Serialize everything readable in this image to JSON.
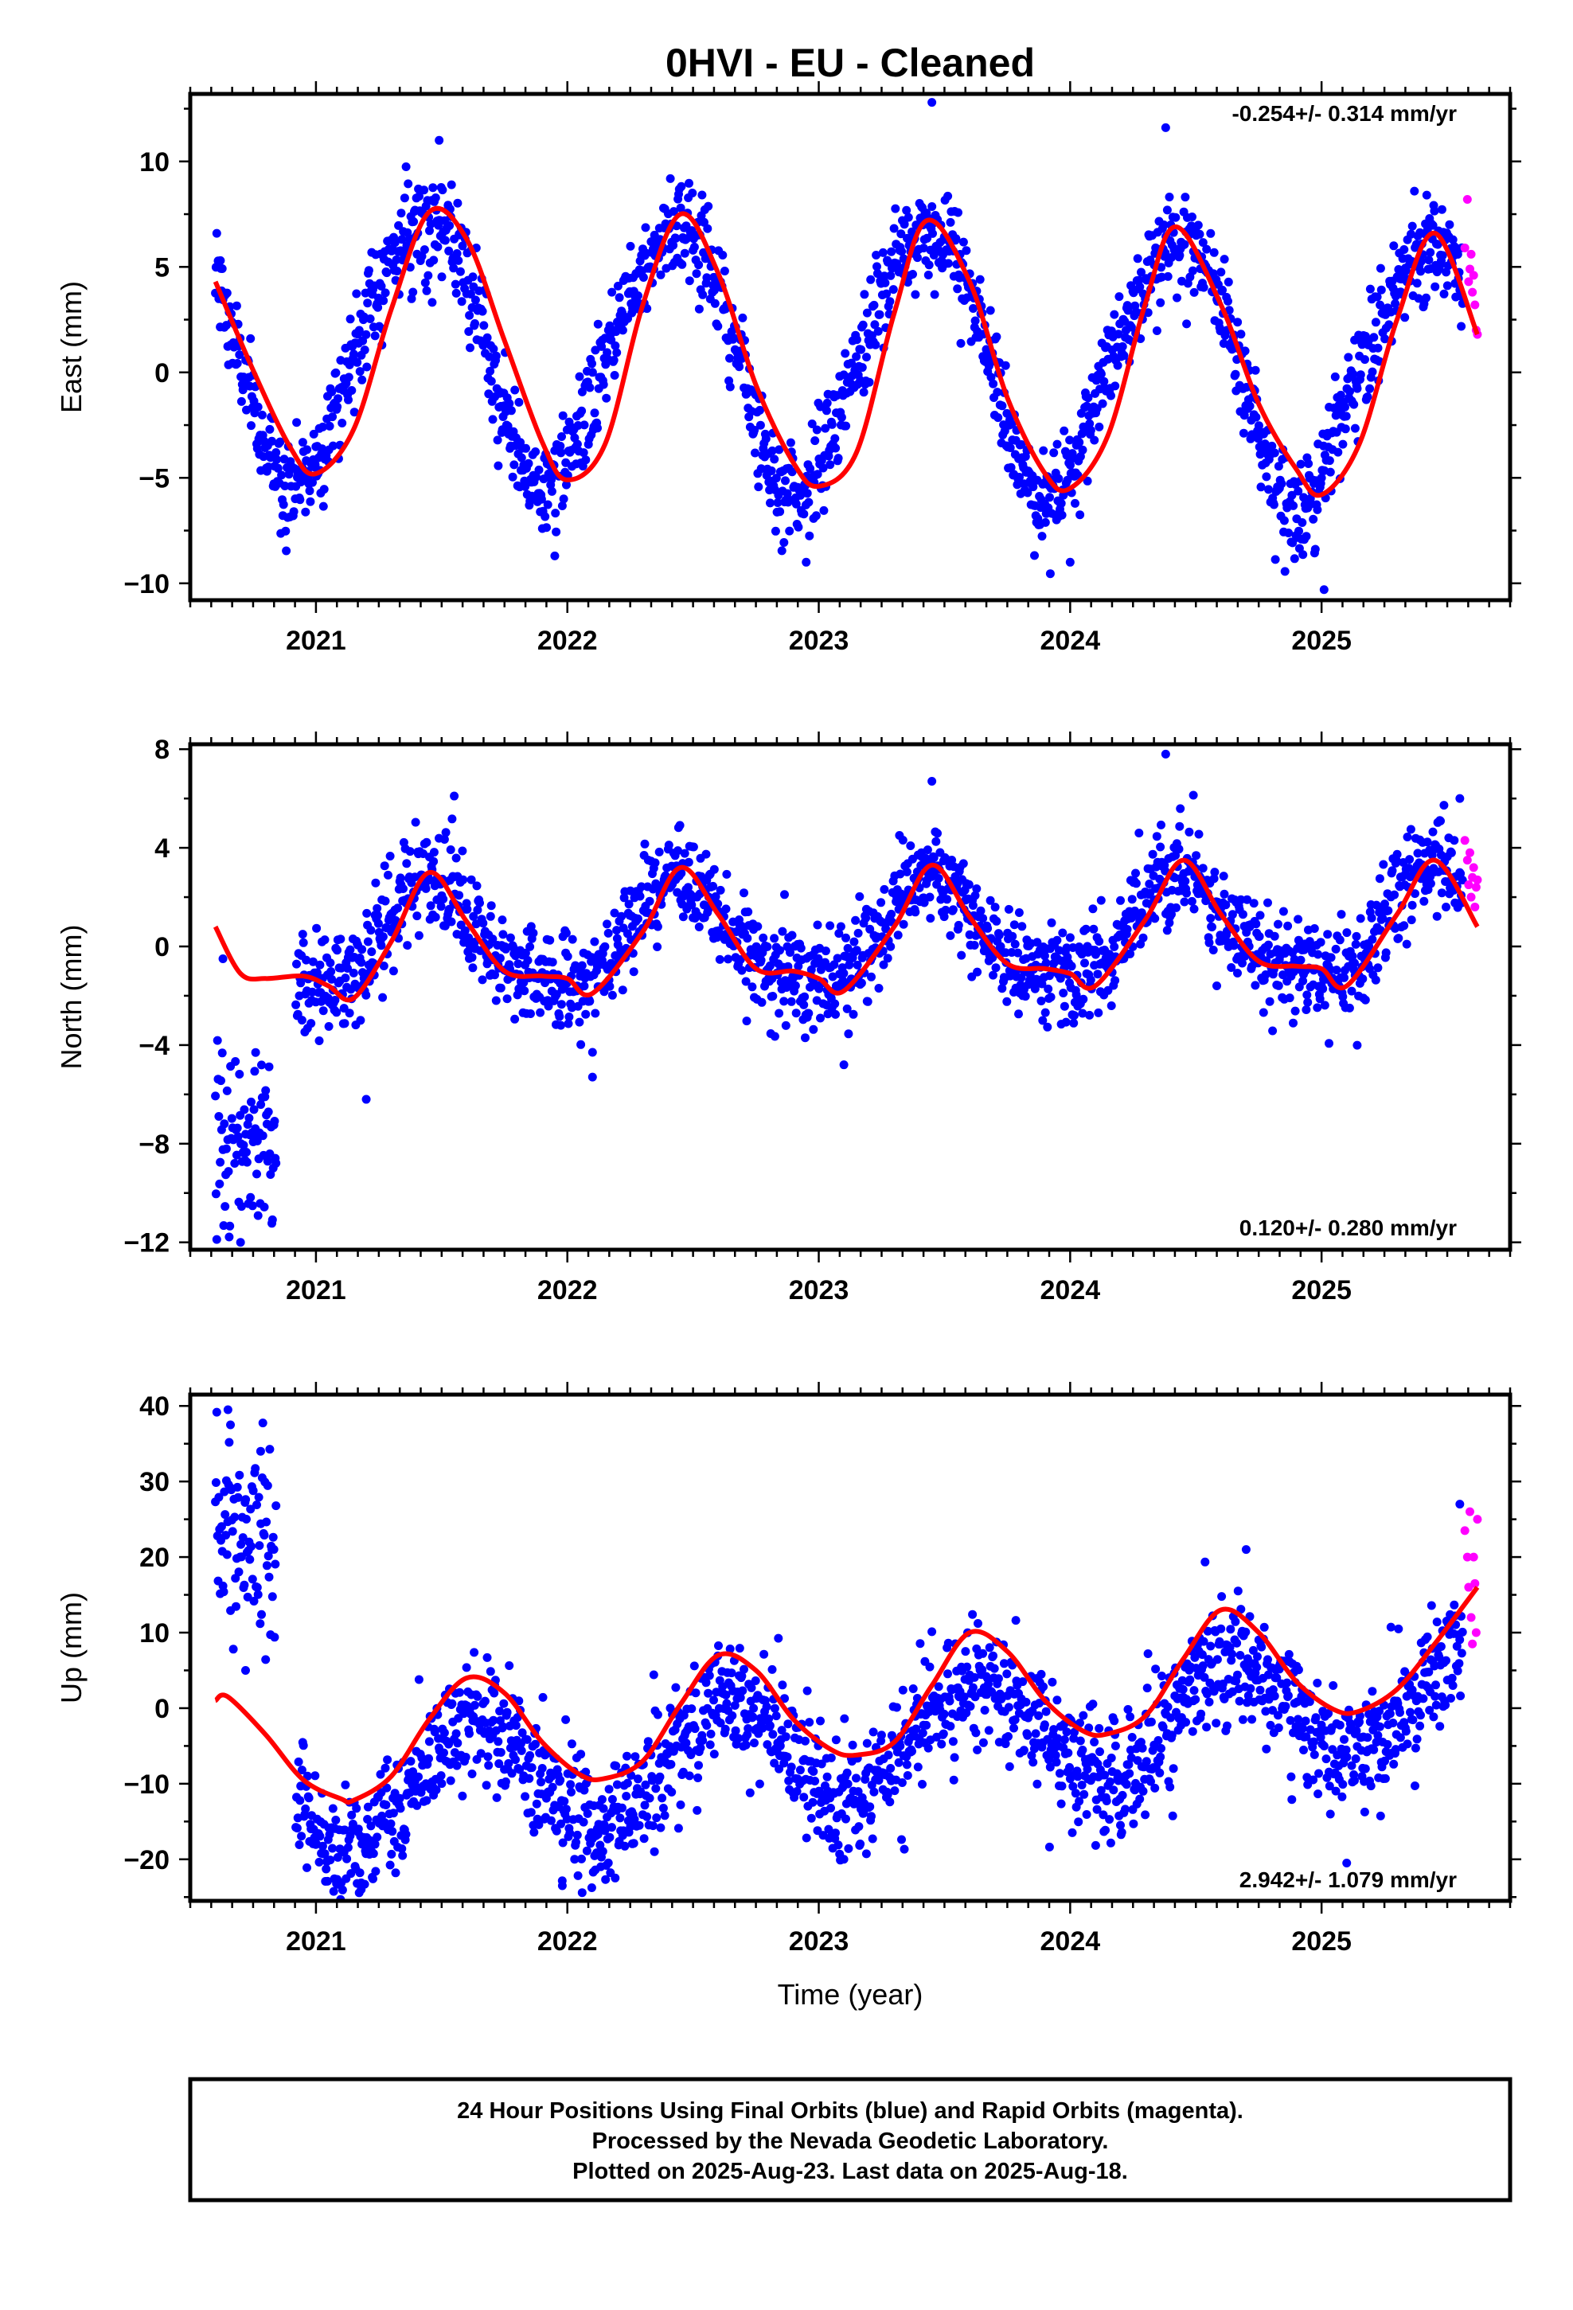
{
  "title": "0HVI  - EU - Cleaned",
  "colors": {
    "final_orbit_points": "#0000ff",
    "rapid_orbit_points": "#ff00ff",
    "model_curve": "#ff0000",
    "frame": "#000000",
    "background": "#ffffff"
  },
  "xlabel": "Time (year)",
  "footer": {
    "line1": "24 Hour Positions Using Final Orbits (blue) and Rapid Orbits (magenta).",
    "line2": "Processed by the Nevada Geodetic Laboratory.",
    "line3": "Plotted on 2025-Aug-23. Last data on 2025-Aug-18."
  },
  "chart_data": [
    {
      "type": "scatter",
      "ylabel": "East (mm)",
      "rate": "-0.254+/- 0.314 mm/yr",
      "rate_position": "top-right",
      "xlim": [
        2020.5,
        2025.75
      ],
      "ylim": [
        -10.8,
        13.2
      ],
      "xticks": [
        2021,
        2022,
        2023,
        2024,
        2025
      ],
      "xtick_labels": [
        "2021",
        "2022",
        "2023",
        "2024",
        "2025"
      ],
      "yticks": [
        -10,
        -5,
        0,
        5,
        10
      ],
      "ytick_labels": [
        "−10",
        "−5",
        "0",
        "5",
        "10"
      ],
      "grid": false,
      "series": [
        {
          "kind": "final",
          "x_range": [
            2020.6,
            2025.56
          ],
          "spacing_days": 1,
          "trend_mm_per_yr": -0.254,
          "annual_amp_mm": 6.2,
          "annual_peak": 0.42,
          "semiannual_amp_mm": 0.5,
          "semiannual_peak": 0.1,
          "offset_mm": 0.8,
          "scatter_sd_mm": 1.2,
          "extra": [
            {
              "x": 2020.62,
              "y": 5.3
            },
            {
              "x": 2021.49,
              "y": 11.0
            },
            {
              "x": 2023.45,
              "y": 12.8
            },
            {
              "x": 2024.38,
              "y": 11.6
            },
            {
              "x": 2025.01,
              "y": -10.3
            },
            {
              "x": 2022.95,
              "y": -9.0
            },
            {
              "x": 2021.95,
              "y": -8.7
            },
            {
              "x": 2024.0,
              "y": -9.0
            }
          ]
        },
        {
          "kind": "rapid",
          "x": [
            2025.57,
            2025.58,
            2025.585,
            2025.59,
            2025.595,
            2025.6,
            2025.605,
            2025.61,
            2025.615,
            2025.62
          ],
          "y": [
            5.9,
            8.2,
            4.3,
            4.9,
            5.6,
            3.8,
            4.6,
            3.2,
            2.0,
            1.8
          ]
        }
      ],
      "model_curve": {
        "x": [
          2020.6,
          2020.75,
          2020.9,
          2021.0,
          2021.15,
          2021.3,
          2021.45,
          2021.6,
          2021.75,
          2021.9,
          2022.0,
          2022.15,
          2022.3,
          2022.45,
          2022.6,
          2022.75,
          2022.9,
          2023.0,
          2023.15,
          2023.3,
          2023.43,
          2023.6,
          2023.75,
          2023.9,
          2024.0,
          2024.15,
          2024.3,
          2024.42,
          2024.6,
          2024.75,
          2024.9,
          2025.0,
          2025.15,
          2025.3,
          2025.45,
          2025.62
        ],
        "y": [
          4.3,
          0.1,
          -3.6,
          -4.8,
          -2.7,
          3.0,
          7.6,
          6.3,
          1.5,
          -3.3,
          -5.1,
          -3.4,
          3.2,
          7.5,
          4.7,
          -0.6,
          -4.3,
          -5.4,
          -3.8,
          2.8,
          7.2,
          4.3,
          -1.2,
          -4.8,
          -5.5,
          -3.0,
          3.3,
          6.9,
          3.2,
          -1.5,
          -4.6,
          -5.8,
          -3.4,
          2.5,
          6.6,
          1.8
        ]
      }
    },
    {
      "type": "scatter",
      "ylabel": "North (mm)",
      "rate": "0.120+/- 0.280 mm/yr",
      "rate_position": "bottom-right",
      "xlim": [
        2020.5,
        2025.75
      ],
      "ylim": [
        -12.3,
        8.2
      ],
      "xticks": [
        2021,
        2022,
        2023,
        2024,
        2025
      ],
      "xtick_labels": [
        "2021",
        "2022",
        "2023",
        "2024",
        "2025"
      ],
      "yticks": [
        -12,
        -8,
        -4,
        0,
        4,
        8
      ],
      "ytick_labels": [
        "−12",
        "−8",
        "−4",
        "0",
        "4",
        "8"
      ],
      "grid": false,
      "series": [
        {
          "kind": "final",
          "x_range": [
            2020.92,
            2025.56
          ],
          "spacing_days": 1,
          "trend_mm_per_yr": 0.12,
          "annual_amp_mm": 2.1,
          "annual_peak": 0.45,
          "semiannual_amp_mm": 0.5,
          "semiannual_peak": 0.42,
          "offset_mm": 0.4,
          "scatter_sd_mm": 1.0,
          "extra": [
            {
              "x": 2024.38,
              "y": 7.8
            },
            {
              "x": 2021.55,
              "y": 6.1
            },
            {
              "x": 2023.45,
              "y": 6.7
            },
            {
              "x": 2022.1,
              "y": -5.3
            },
            {
              "x": 2023.1,
              "y": -4.8
            },
            {
              "x": 2021.2,
              "y": -6.2
            },
            {
              "x": 2025.55,
              "y": 6.0
            }
          ]
        },
        {
          "kind": "final_early",
          "x_range": [
            2020.6,
            2020.84
          ],
          "spacing_days": 1,
          "y_center": -8.0,
          "scatter_sd_mm": 1.8,
          "extra": [
            {
              "x": 2020.7,
              "y": -12.0
            },
            {
              "x": 2020.63,
              "y": -0.5
            },
            {
              "x": 2020.76,
              "y": -4.3
            }
          ]
        },
        {
          "kind": "rapid",
          "x": [
            2025.57,
            2025.58,
            2025.585,
            2025.59,
            2025.595,
            2025.6,
            2025.605,
            2025.61,
            2025.615,
            2025.62
          ],
          "y": [
            4.3,
            3.5,
            2.5,
            3.8,
            2.0,
            2.8,
            3.2,
            1.6,
            2.4,
            2.7
          ]
        }
      ],
      "model_curve": {
        "x": [
          2020.6,
          2020.7,
          2020.8,
          2020.95,
          2021.05,
          2021.15,
          2021.3,
          2021.45,
          2021.6,
          2021.75,
          2021.9,
          2022.0,
          2022.1,
          2022.3,
          2022.45,
          2022.6,
          2022.75,
          2022.9,
          2023.0,
          2023.1,
          2023.3,
          2023.45,
          2023.6,
          2023.75,
          2023.9,
          2024.0,
          2024.1,
          2024.3,
          2024.45,
          2024.6,
          2024.75,
          2024.9,
          2025.0,
          2025.1,
          2025.3,
          2025.45,
          2025.62
        ],
        "y": [
          0.8,
          -1.1,
          -1.3,
          -1.2,
          -1.6,
          -2.1,
          0.2,
          3.0,
          1.0,
          -1.0,
          -1.2,
          -1.3,
          -1.9,
          0.6,
          3.2,
          1.3,
          -0.9,
          -1.0,
          -1.3,
          -1.8,
          0.8,
          3.3,
          1.2,
          -0.7,
          -0.9,
          -1.1,
          -1.6,
          1.1,
          3.5,
          1.3,
          -0.6,
          -0.8,
          -0.9,
          -1.6,
          1.3,
          3.5,
          0.8
        ]
      }
    },
    {
      "type": "scatter",
      "ylabel": "Up (mm)",
      "rate": "2.942+/- 1.079 mm/yr",
      "rate_position": "bottom-right",
      "xlim": [
        2020.5,
        2025.75
      ],
      "ylim": [
        -25.5,
        41.5
      ],
      "xticks": [
        2021,
        2022,
        2023,
        2024,
        2025
      ],
      "xtick_labels": [
        "2021",
        "2022",
        "2023",
        "2024",
        "2025"
      ],
      "yticks": [
        -20,
        -10,
        0,
        10,
        20,
        30,
        40
      ],
      "ytick_labels": [
        "−20",
        "−10",
        "0",
        "10",
        "20",
        "30",
        "40"
      ],
      "grid": false,
      "series": [
        {
          "kind": "final",
          "x_range": [
            2020.92,
            2025.56
          ],
          "spacing_days": 1,
          "trend_mm_per_yr": 2.94,
          "annual_amp_mm": 7.5,
          "annual_peak": 0.63,
          "semiannual_amp_mm": 0.0,
          "semiannual_peak": 0.0,
          "offset_mm": -5.5,
          "scatter_sd_mm": 4.2,
          "extra": [
            {
              "x": 2021.18,
              "y": -24.0
            },
            {
              "x": 2021.98,
              "y": -23.5
            },
            {
              "x": 2025.1,
              "y": -20.5
            },
            {
              "x": 2024.7,
              "y": 21.0
            },
            {
              "x": 2025.55,
              "y": 27.0
            },
            {
              "x": 2023.1,
              "y": -20.0
            }
          ]
        },
        {
          "kind": "final_early",
          "x_range": [
            2020.6,
            2020.84
          ],
          "spacing_days": 1,
          "y_center": 22.0,
          "scatter_sd_mm": 6.5,
          "extra": [
            {
              "x": 2020.65,
              "y": 39.5
            },
            {
              "x": 2020.66,
              "y": 37.5
            },
            {
              "x": 2020.78,
              "y": 34.0
            },
            {
              "x": 2020.72,
              "y": 5.0
            }
          ]
        },
        {
          "kind": "rapid",
          "x": [
            2025.57,
            2025.58,
            2025.585,
            2025.59,
            2025.595,
            2025.6,
            2025.605,
            2025.61,
            2025.615,
            2025.62
          ],
          "y": [
            23.5,
            20.0,
            16.0,
            26.0,
            12.0,
            8.5,
            20.0,
            16.5,
            10.0,
            25.0
          ]
        }
      ],
      "model_curve": {
        "x": [
          2020.6,
          2020.65,
          2020.8,
          2020.95,
          2021.1,
          2021.15,
          2021.3,
          2021.45,
          2021.6,
          2021.75,
          2021.9,
          2022.05,
          2022.15,
          2022.3,
          2022.45,
          2022.6,
          2022.75,
          2022.9,
          2023.05,
          2023.15,
          2023.3,
          2023.45,
          2023.6,
          2023.75,
          2023.9,
          2024.05,
          2024.15,
          2024.3,
          2024.45,
          2024.6,
          2024.75,
          2024.9,
          2025.05,
          2025.15,
          2025.3,
          2025.45,
          2025.62
        ],
        "y": [
          1.0,
          1.5,
          -3.5,
          -9.5,
          -12.0,
          -12.2,
          -9.0,
          -1.5,
          4.0,
          2.0,
          -4.5,
          -8.8,
          -9.3,
          -7.0,
          0.5,
          7.0,
          5.0,
          -1.5,
          -5.5,
          -6.2,
          -4.5,
          3.0,
          10.0,
          7.5,
          1.0,
          -3.0,
          -3.4,
          -1.0,
          6.5,
          13.0,
          10.0,
          3.5,
          -0.2,
          -0.4,
          2.5,
          8.5,
          16.0
        ]
      }
    }
  ]
}
